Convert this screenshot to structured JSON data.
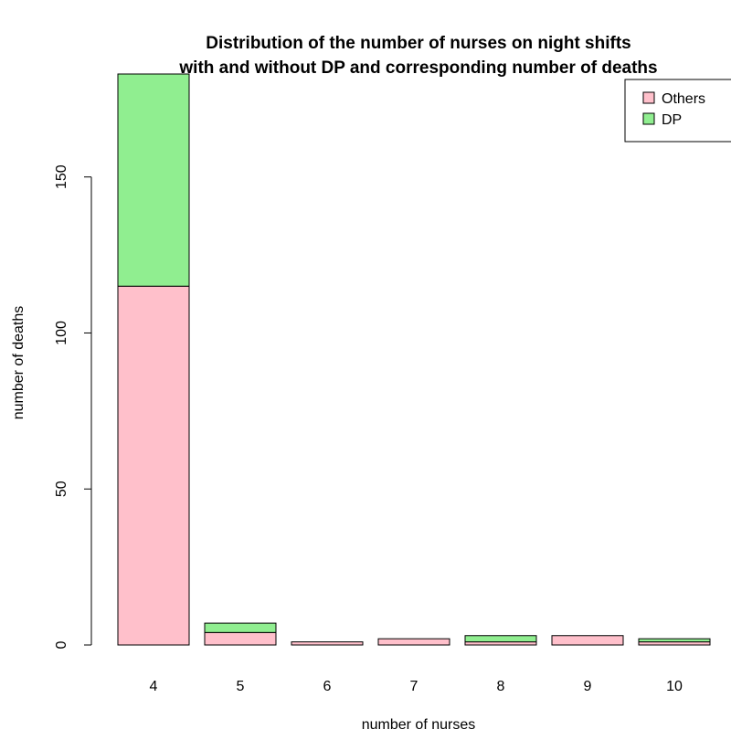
{
  "chart_data": {
    "type": "bar",
    "stacked": true,
    "title": "Distribution of the number of nurses on night shifts",
    "subtitle": "with and without DP and corresponding number of deaths",
    "xlabel": "number of nurses",
    "ylabel": "number of deaths",
    "categories": [
      "4",
      "5",
      "6",
      "7",
      "8",
      "9",
      "10"
    ],
    "series": [
      {
        "name": "Others",
        "color": "#FFC0CB",
        "values": [
          115,
          4,
          1,
          2,
          1,
          3,
          1
        ]
      },
      {
        "name": "DP",
        "color": "#90EE90",
        "values": [
          68,
          3,
          0,
          0,
          2,
          0,
          1
        ]
      }
    ],
    "ylim": [
      0,
      183
    ],
    "yticks": [
      0,
      50,
      100,
      150
    ],
    "legend": {
      "position": "top-right",
      "entries": [
        "Others",
        "DP"
      ]
    },
    "grid": false
  }
}
